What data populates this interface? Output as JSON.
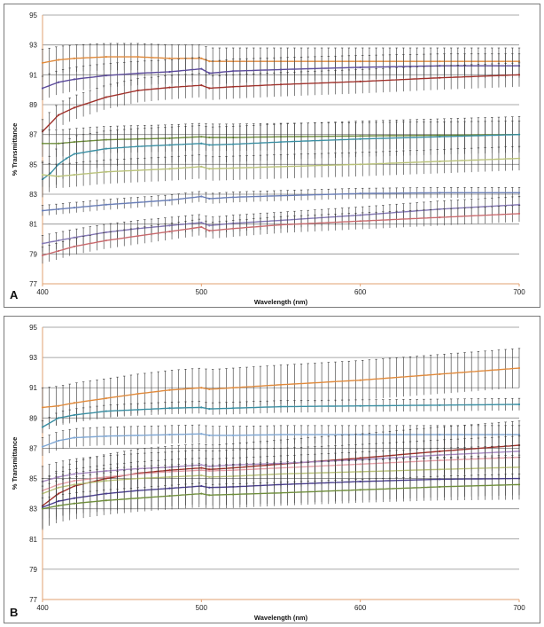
{
  "chart_data": [
    {
      "panel": "A",
      "type": "line",
      "xlabel": "Wavelength (nm)",
      "ylabel": "% Transmittance",
      "xlim": [
        400,
        700
      ],
      "ylim": [
        77,
        95
      ],
      "xticks": [
        "400",
        "500",
        "600",
        "700"
      ],
      "yticks": [
        "77",
        "79",
        "81",
        "83",
        "85",
        "87",
        "89",
        "91",
        "93",
        "95"
      ],
      "grid": true,
      "legend": "none",
      "series": [
        {
          "color": "#e08a3c",
          "err": 0.9,
          "x": [
            400,
            410,
            420,
            440,
            460,
            480,
            500,
            505,
            520,
            550,
            600,
            650,
            700
          ],
          "y": [
            91.8,
            92.0,
            92.1,
            92.2,
            92.2,
            92.1,
            92.1,
            91.9,
            91.9,
            91.9,
            91.9,
            91.9,
            91.9
          ]
        },
        {
          "color": "#5b4a9b",
          "err": 0.8,
          "x": [
            400,
            410,
            420,
            440,
            460,
            480,
            500,
            505,
            520,
            550,
            600,
            650,
            700
          ],
          "y": [
            90.1,
            90.5,
            90.7,
            90.95,
            91.1,
            91.2,
            91.4,
            91.1,
            91.25,
            91.35,
            91.5,
            91.6,
            91.6
          ]
        },
        {
          "color": "#a0322c",
          "err": 0.8,
          "x": [
            400,
            410,
            420,
            440,
            460,
            480,
            500,
            505,
            520,
            550,
            600,
            650,
            700
          ],
          "y": [
            87.2,
            88.3,
            88.8,
            89.5,
            89.95,
            90.15,
            90.3,
            90.1,
            90.2,
            90.35,
            90.55,
            90.8,
            91.0
          ]
        },
        {
          "color": "#6f8e3c",
          "err": 0.9,
          "x": [
            400,
            410,
            420,
            440,
            460,
            480,
            500,
            505,
            520,
            550,
            600,
            650,
            700
          ],
          "y": [
            86.4,
            86.4,
            86.5,
            86.65,
            86.7,
            86.75,
            86.85,
            86.8,
            86.8,
            86.85,
            86.9,
            86.95,
            87.0
          ]
        },
        {
          "color": "#3a8fa3",
          "err": 1.2,
          "x": [
            400,
            405,
            410,
            415,
            420,
            440,
            460,
            480,
            500,
            505,
            520,
            550,
            600,
            650,
            700
          ],
          "y": [
            84.0,
            84.4,
            85.0,
            85.4,
            85.7,
            86.05,
            86.2,
            86.3,
            86.4,
            86.3,
            86.35,
            86.5,
            86.7,
            86.85,
            87.0
          ]
        },
        {
          "color": "#b9c27a",
          "err": 0.8,
          "x": [
            400,
            410,
            420,
            440,
            460,
            480,
            500,
            505,
            520,
            550,
            600,
            650,
            700
          ],
          "y": [
            84.3,
            84.2,
            84.3,
            84.5,
            84.6,
            84.7,
            84.85,
            84.7,
            84.75,
            84.85,
            85.0,
            85.2,
            85.4
          ]
        },
        {
          "color": "#6a7fb8",
          "err": 0.35,
          "x": [
            400,
            410,
            420,
            440,
            460,
            480,
            500,
            505,
            520,
            550,
            600,
            650,
            700
          ],
          "y": [
            81.9,
            82.0,
            82.1,
            82.3,
            82.45,
            82.6,
            82.85,
            82.7,
            82.8,
            82.9,
            83.05,
            83.1,
            83.1
          ]
        },
        {
          "color": "#8579b6",
          "err": 0.55,
          "x": [
            400,
            410,
            420,
            440,
            460,
            480,
            500,
            505,
            520,
            550,
            600,
            650,
            700
          ],
          "y": [
            79.7,
            79.9,
            80.1,
            80.45,
            80.7,
            80.9,
            81.1,
            80.9,
            81.05,
            81.25,
            81.6,
            82.0,
            82.3
          ]
        },
        {
          "color": "#c96a6e",
          "err": 0.55,
          "x": [
            400,
            410,
            420,
            440,
            460,
            480,
            500,
            505,
            520,
            550,
            600,
            650,
            700
          ],
          "y": [
            78.9,
            79.2,
            79.5,
            79.9,
            80.2,
            80.5,
            80.8,
            80.55,
            80.7,
            80.95,
            81.2,
            81.45,
            81.7
          ]
        }
      ]
    },
    {
      "panel": "B",
      "type": "line",
      "xlabel": "Wavelength (nm)",
      "ylabel": "% Transmittance",
      "xlim": [
        400,
        700
      ],
      "ylim": [
        77,
        95
      ],
      "xticks": [
        "400",
        "500",
        "600",
        "700"
      ],
      "yticks": [
        "77",
        "79",
        "81",
        "83",
        "85",
        "87",
        "89",
        "91",
        "93",
        "95"
      ],
      "grid": true,
      "legend": "none",
      "series": [
        {
          "color": "#e08a3c",
          "err": 1.3,
          "x": [
            400,
            410,
            420,
            440,
            460,
            480,
            500,
            505,
            520,
            550,
            600,
            650,
            700
          ],
          "y": [
            89.7,
            89.8,
            90.0,
            90.3,
            90.6,
            90.85,
            91.0,
            90.9,
            91.0,
            91.2,
            91.5,
            91.9,
            92.3
          ]
        },
        {
          "color": "#3a8fa3",
          "err": 0.4,
          "x": [
            400,
            410,
            420,
            440,
            460,
            480,
            500,
            505,
            520,
            550,
            600,
            650,
            700
          ],
          "y": [
            88.4,
            89.0,
            89.2,
            89.45,
            89.55,
            89.65,
            89.7,
            89.6,
            89.65,
            89.75,
            89.8,
            89.85,
            89.9
          ]
        },
        {
          "color": "#7fa7d4",
          "err": 0.6,
          "x": [
            400,
            410,
            420,
            440,
            460,
            480,
            500,
            505,
            520,
            550,
            600,
            650,
            700
          ],
          "y": [
            87.1,
            87.5,
            87.7,
            87.8,
            87.85,
            87.9,
            87.95,
            87.85,
            87.85,
            87.9,
            87.9,
            87.9,
            87.9
          ]
        },
        {
          "color": "#a0322c",
          "err": 1.6,
          "x": [
            400,
            410,
            420,
            440,
            460,
            480,
            500,
            505,
            520,
            550,
            600,
            650,
            700
          ],
          "y": [
            83.2,
            84.0,
            84.5,
            85.0,
            85.35,
            85.55,
            85.7,
            85.6,
            85.7,
            85.95,
            86.35,
            86.8,
            87.2
          ]
        },
        {
          "color": "#a98bc4",
          "err": 1.0,
          "x": [
            400,
            410,
            420,
            440,
            460,
            480,
            500,
            505,
            520,
            550,
            600,
            650,
            700
          ],
          "y": [
            84.8,
            85.1,
            85.3,
            85.5,
            85.65,
            85.75,
            85.9,
            85.8,
            85.9,
            86.0,
            86.25,
            86.55,
            86.8
          ]
        },
        {
          "color": "#e6a0a8",
          "err": 0.8,
          "x": [
            400,
            410,
            420,
            440,
            460,
            480,
            500,
            505,
            520,
            550,
            600,
            650,
            700
          ],
          "y": [
            84.2,
            84.6,
            84.85,
            85.1,
            85.3,
            85.45,
            85.55,
            85.5,
            85.55,
            85.7,
            85.95,
            86.2,
            86.4
          ]
        },
        {
          "color": "#b9c27a",
          "err": 0.8,
          "x": [
            400,
            410,
            420,
            440,
            460,
            480,
            500,
            505,
            520,
            550,
            600,
            650,
            700
          ],
          "y": [
            84.0,
            84.4,
            84.6,
            84.85,
            85.0,
            85.1,
            85.2,
            85.1,
            85.15,
            85.3,
            85.45,
            85.6,
            85.75
          ]
        },
        {
          "color": "#4a3f8f",
          "err": 1.4,
          "x": [
            400,
            410,
            420,
            440,
            460,
            480,
            500,
            505,
            520,
            550,
            600,
            650,
            700
          ],
          "y": [
            83.1,
            83.5,
            83.7,
            84.0,
            84.2,
            84.35,
            84.5,
            84.4,
            84.45,
            84.6,
            84.8,
            84.95,
            85.0
          ]
        },
        {
          "color": "#6f8e3c",
          "err": 0.7,
          "x": [
            400,
            410,
            420,
            440,
            460,
            480,
            500,
            505,
            520,
            550,
            600,
            650,
            700
          ],
          "y": [
            83.0,
            83.2,
            83.35,
            83.55,
            83.7,
            83.85,
            84.0,
            83.9,
            83.95,
            84.05,
            84.25,
            84.45,
            84.6
          ]
        }
      ]
    }
  ],
  "panels": [
    {
      "letter": "A",
      "xlabel": "Wavelength (nm)",
      "ylabel": "% Transmittance"
    },
    {
      "letter": "B",
      "xlabel": "Wavelength (nm)",
      "ylabel": "% Transmittance"
    }
  ]
}
